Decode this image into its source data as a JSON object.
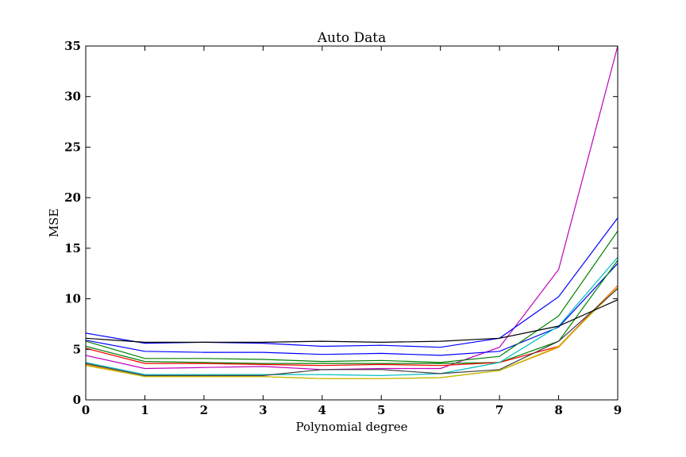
{
  "chart_data": {
    "type": "line",
    "title": "Auto Data",
    "xlabel": "Polynomial degree",
    "ylabel": "MSE",
    "xlim": [
      0,
      9
    ],
    "ylim": [
      0,
      35
    ],
    "xticks": [
      "0",
      "1",
      "2",
      "3",
      "4",
      "5",
      "6",
      "7",
      "8",
      "9"
    ],
    "yticks": [
      "0",
      "5",
      "10",
      "15",
      "20",
      "25",
      "30",
      "35"
    ],
    "grid": false,
    "legend": "none",
    "x": [
      0,
      1,
      2,
      3,
      4,
      5,
      6,
      7,
      8,
      9
    ],
    "series": [
      {
        "color": "#bf00bf",
        "values": [
          4.4,
          3.1,
          3.2,
          3.3,
          3.0,
          3.1,
          3.1,
          5.2,
          12.9,
          35.0
        ]
      },
      {
        "color": "#0000ff",
        "values": [
          6.6,
          5.6,
          5.7,
          5.6,
          5.3,
          5.4,
          5.2,
          6.1,
          10.2,
          18.0
        ]
      },
      {
        "color": "#0000ff",
        "values": [
          5.9,
          4.8,
          4.7,
          4.7,
          4.5,
          4.6,
          4.4,
          4.8,
          7.2,
          13.5
        ]
      },
      {
        "color": "#008000",
        "values": [
          5.8,
          4.1,
          4.1,
          4.0,
          3.8,
          3.9,
          3.7,
          4.3,
          8.3,
          16.7
        ]
      },
      {
        "color": "#008000",
        "values": [
          5.3,
          3.8,
          3.7,
          3.6,
          3.6,
          3.6,
          3.6,
          3.7,
          5.8,
          13.8
        ]
      },
      {
        "color": "#ff0000",
        "values": [
          5.1,
          3.6,
          3.6,
          3.5,
          3.4,
          3.5,
          3.4,
          3.7,
          5.3,
          11.3
        ]
      },
      {
        "color": "#00bfbf",
        "values": [
          3.7,
          2.5,
          2.5,
          2.5,
          2.5,
          2.4,
          2.6,
          3.7,
          7.3,
          14.1
        ]
      },
      {
        "color": "#ff8000",
        "values": [
          3.5,
          2.3,
          2.3,
          2.3,
          2.1,
          2.1,
          2.2,
          2.9,
          5.2,
          11.3
        ]
      },
      {
        "color": "#bfbf00",
        "values": [
          3.4,
          2.3,
          2.3,
          2.3,
          2.1,
          2.1,
          2.2,
          2.9,
          5.3,
          11.1
        ]
      },
      {
        "color": "#404040",
        "values": [
          3.6,
          2.4,
          2.4,
          2.4,
          3.0,
          3.0,
          2.6,
          3.0,
          5.8,
          11.0
        ]
      },
      {
        "color": "#000000",
        "values": [
          6.1,
          5.7,
          5.7,
          5.7,
          5.8,
          5.7,
          5.8,
          6.1,
          7.3,
          9.9
        ]
      }
    ]
  }
}
